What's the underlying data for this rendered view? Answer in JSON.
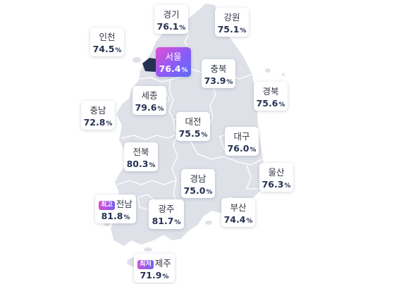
{
  "unit": "%",
  "regions": [
    {
      "id": "gyeonggi",
      "name": "경기",
      "value": "76.1"
    },
    {
      "id": "gangwon",
      "name": "강원",
      "value": "75.1"
    },
    {
      "id": "incheon",
      "name": "인천",
      "value": "74.5"
    },
    {
      "id": "seoul",
      "name": "서울",
      "value": "76.4",
      "highlight": true
    },
    {
      "id": "chungbuk",
      "name": "충북",
      "value": "73.9"
    },
    {
      "id": "gyeongbuk",
      "name": "경북",
      "value": "75.6"
    },
    {
      "id": "sejong",
      "name": "세종",
      "value": "79.6"
    },
    {
      "id": "chungnam",
      "name": "충남",
      "value": "72.8"
    },
    {
      "id": "daejeon",
      "name": "대전",
      "value": "75.5"
    },
    {
      "id": "daegu",
      "name": "대구",
      "value": "76.0"
    },
    {
      "id": "jeonbuk",
      "name": "전북",
      "value": "80.3"
    },
    {
      "id": "ulsan",
      "name": "울산",
      "value": "76.3"
    },
    {
      "id": "gyeongnam",
      "name": "경남",
      "value": "75.0"
    },
    {
      "id": "jeonnam",
      "name": "전남",
      "value": "81.8",
      "badge": "최고"
    },
    {
      "id": "gwangju",
      "name": "광주",
      "value": "81.7"
    },
    {
      "id": "busan",
      "name": "부산",
      "value": "74.4"
    },
    {
      "id": "jeju",
      "name": "제주",
      "value": "71.9",
      "badge": "최저"
    }
  ],
  "colors": {
    "land": "#dfe1e9",
    "border": "#ffffff",
    "seoul": "#263152",
    "highlight_gradient": [
      "#e24fd2",
      "#8a5cf6",
      "#5b6cf5"
    ]
  }
}
